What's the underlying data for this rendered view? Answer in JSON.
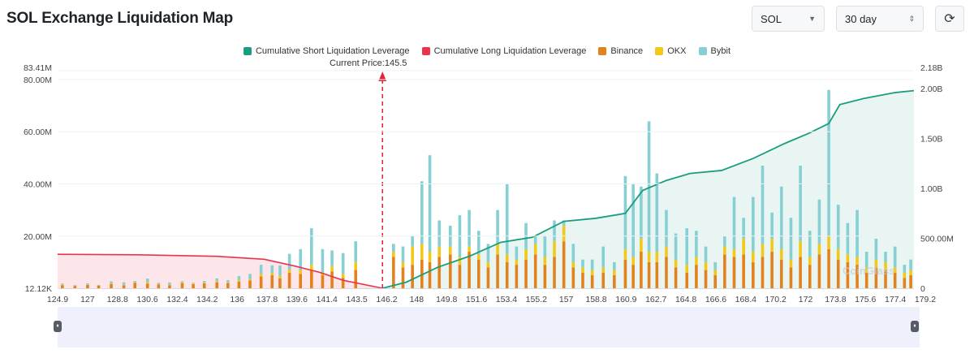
{
  "page": {
    "title": "SOL Exchange Liquidation Map"
  },
  "controls": {
    "coin": "SOL",
    "period": "30 day",
    "refresh_icon": "refresh-icon"
  },
  "legend": [
    {
      "label": "Cumulative Short Liquidation Leverage",
      "color": "#1a9d7f"
    },
    {
      "label": "Cumulative Long Liquidation Leverage",
      "color": "#e8354f"
    },
    {
      "label": "Binance",
      "color": "#e3821c"
    },
    {
      "label": "OKX",
      "color": "#f2c919"
    },
    {
      "label": "Bybit",
      "color": "#86cfd2"
    }
  ],
  "current_price_label": "Current Price:145.5",
  "watermark": "CoinGlass",
  "chart_data": {
    "type": "bar",
    "title": "SOL Exchange Liquidation Map",
    "current_price": 145.5,
    "x_min": 124.9,
    "x_max": 179.2,
    "x_ticks": [
      "124.9",
      "127",
      "128.8",
      "130.6",
      "132.4",
      "134.2",
      "136",
      "137.8",
      "139.6",
      "141.4",
      "143.5",
      "146.2",
      "148",
      "149.8",
      "151.6",
      "153.4",
      "155.2",
      "157",
      "158.8",
      "160.9",
      "162.7",
      "164.8",
      "166.6",
      "168.4",
      "170.2",
      "172",
      "173.8",
      "175.6",
      "177.4",
      "179.2"
    ],
    "y_left": {
      "min": 12120,
      "max": 83410000,
      "ticks": [
        {
          "v": 12120,
          "label": "12.12K"
        },
        {
          "v": 20000000,
          "label": "20.00M"
        },
        {
          "v": 40000000,
          "label": "40.00M"
        },
        {
          "v": 60000000,
          "label": "60.00M"
        },
        {
          "v": 80000000,
          "label": "80.00M"
        },
        {
          "v": 83410000,
          "label": "83.41M"
        }
      ]
    },
    "y_right": {
      "min": 0,
      "max": 2180000000,
      "ticks": [
        {
          "v": 0,
          "label": "0"
        },
        {
          "v": 500000000,
          "label": "500.00M"
        },
        {
          "v": 1000000000,
          "label": "1.00B"
        },
        {
          "v": 1500000000,
          "label": "1.50B"
        },
        {
          "v": 2000000000,
          "label": "2.00B"
        },
        {
          "v": 2180000000,
          "label": "2.18B"
        }
      ]
    },
    "long_cumulative": [
      [
        124.9,
        340000000
      ],
      [
        130,
        335000000
      ],
      [
        135,
        320000000
      ],
      [
        138,
        290000000
      ],
      [
        140,
        220000000
      ],
      [
        141.5,
        160000000
      ],
      [
        143,
        80000000
      ],
      [
        145.5,
        0
      ]
    ],
    "short_cumulative": [
      [
        145.5,
        0
      ],
      [
        147,
        60000000
      ],
      [
        149,
        210000000
      ],
      [
        151,
        320000000
      ],
      [
        153,
        460000000
      ],
      [
        155,
        510000000
      ],
      [
        157,
        670000000
      ],
      [
        159,
        700000000
      ],
      [
        160.9,
        750000000
      ],
      [
        162,
        980000000
      ],
      [
        163.5,
        1080000000
      ],
      [
        165,
        1150000000
      ],
      [
        167,
        1180000000
      ],
      [
        169,
        1300000000
      ],
      [
        171,
        1450000000
      ],
      [
        172.5,
        1550000000
      ],
      [
        173.8,
        1650000000
      ],
      [
        174.5,
        1840000000
      ],
      [
        176,
        1900000000
      ],
      [
        178,
        1960000000
      ],
      [
        179.2,
        1980000000
      ]
    ],
    "series_names": [
      "Binance",
      "OKX",
      "Bybit"
    ],
    "bars": [
      [
        125.2,
        1200000.0,
        300000.0,
        300000.0
      ],
      [
        126.0,
        900000.0,
        200000.0,
        100000.0
      ],
      [
        126.8,
        1300000.0,
        200000.0,
        400000.0
      ],
      [
        127.5,
        1000000.0,
        100000.0,
        200000.0
      ],
      [
        128.3,
        1600000.0,
        300000.0,
        700000.0
      ],
      [
        129.1,
        1100000.0,
        200000.0,
        1000000.0
      ],
      [
        129.8,
        2100000.0,
        200000.0,
        500000.0
      ],
      [
        130.6,
        1800000.0,
        600000.0,
        1300000.0
      ],
      [
        131.3,
        1500000.0,
        200000.0,
        400000.0
      ],
      [
        132.0,
        1200000.0,
        200000.0,
        800000.0
      ],
      [
        132.8,
        2000000.0,
        400000.0,
        300000.0
      ],
      [
        133.5,
        1600000.0,
        200000.0,
        300000.0
      ],
      [
        134.2,
        1900000.0,
        300000.0,
        600000.0
      ],
      [
        135.0,
        2300000.0,
        500000.0,
        1000000.0
      ],
      [
        135.7,
        2000000.0,
        300000.0,
        800000.0
      ],
      [
        136.4,
        2600000.0,
        600000.0,
        1500000.0
      ],
      [
        137.1,
        3000000.0,
        500000.0,
        2000000.0
      ],
      [
        137.8,
        4500000.0,
        1000000.0,
        3500000.0
      ],
      [
        138.5,
        5000000.0,
        800000.0,
        3000000.0
      ],
      [
        139.0,
        3800000.0,
        1000000.0,
        4000000.0
      ],
      [
        139.6,
        6000000.0,
        1200000.0,
        6000000.0
      ],
      [
        140.3,
        5500000.0,
        1500000.0,
        8000000.0
      ],
      [
        141.0,
        7000000.0,
        2000000.0,
        14000000.0
      ],
      [
        141.7,
        5000000.0,
        1000000.0,
        9000000.0
      ],
      [
        142.3,
        6500000.0,
        2000000.0,
        6000000.0
      ],
      [
        143.0,
        4000000.0,
        1500000.0,
        8000000.0
      ],
      [
        143.8,
        7000000.0,
        3000000.0,
        8000000.0
      ],
      [
        146.2,
        12000000.0,
        2000000.0,
        3000000.0
      ],
      [
        146.8,
        8000000.0,
        2000000.0,
        6000000.0
      ],
      [
        147.4,
        9000000.0,
        7000000.0,
        4000000.0
      ],
      [
        148.0,
        11000000.0,
        6000000.0,
        24000000.0
      ],
      [
        148.5,
        10000000.0,
        4000000.0,
        37000000.0
      ],
      [
        149.1,
        12000000.0,
        4000000.0,
        10000000.0
      ],
      [
        149.8,
        13000000.0,
        3000000.0,
        8000000.0
      ],
      [
        150.4,
        9000000.0,
        3000000.0,
        16000000.0
      ],
      [
        151.0,
        14000000.0,
        2000000.0,
        14000000.0
      ],
      [
        151.6,
        11000000.0,
        2000000.0,
        9000000.0
      ],
      [
        152.2,
        8000000.0,
        2000000.0,
        7000000.0
      ],
      [
        152.8,
        13000000.0,
        4000000.0,
        13000000.0
      ],
      [
        153.4,
        10000000.0,
        3000000.0,
        27000000.0
      ],
      [
        154.0,
        9000000.0,
        2000000.0,
        5000000.0
      ],
      [
        154.6,
        11000000.0,
        4000000.0,
        10000000.0
      ],
      [
        155.2,
        13000000.0,
        4000000.0,
        3000000.0
      ],
      [
        155.8,
        9000000.0,
        3000000.0,
        8000000.0
      ],
      [
        156.4,
        12000000.0,
        6000000.0,
        8000000.0
      ],
      [
        157.0,
        18000000.0,
        6000000.0,
        2000000.0
      ],
      [
        157.6,
        8000000.0,
        2000000.0,
        7000000.0
      ],
      [
        158.2,
        6000000.0,
        2000000.0,
        3000000.0
      ],
      [
        158.8,
        5000000.0,
        2000000.0,
        4000000.0
      ],
      [
        159.5,
        6000000.0,
        2000000.0,
        8000000.0
      ],
      [
        160.2,
        5000000.0,
        2000000.0,
        3000000.0
      ],
      [
        160.9,
        11000000.0,
        4000000.0,
        28000000.0
      ],
      [
        161.4,
        9000000.0,
        3000000.0,
        28000000.0
      ],
      [
        161.9,
        14000000.0,
        5000000.0,
        20000000.0
      ],
      [
        162.4,
        10000000.0,
        4000000.0,
        50000000.0
      ],
      [
        162.9,
        10000000.0,
        4000000.0,
        30000000.0
      ],
      [
        163.5,
        12000000.0,
        4000000.0,
        14000000.0
      ],
      [
        164.1,
        8000000.0,
        3000000.0,
        10000000.0
      ],
      [
        164.8,
        6000000.0,
        3000000.0,
        14000000.0
      ],
      [
        165.4,
        9000000.0,
        3000000.0,
        10000000.0
      ],
      [
        166.0,
        7000000.0,
        3000000.0,
        6000000.0
      ],
      [
        166.6,
        5000000.0,
        2000000.0,
        3000000.0
      ],
      [
        167.2,
        13000000.0,
        3000000.0,
        4000000.0
      ],
      [
        167.8,
        12000000.0,
        3000000.0,
        20000000.0
      ],
      [
        168.4,
        13000000.0,
        6000000.0,
        8000000.0
      ],
      [
        169.0,
        10000000.0,
        4000000.0,
        21000000.0
      ],
      [
        169.6,
        12000000.0,
        5000000.0,
        30000000.0
      ],
      [
        170.2,
        14000000.0,
        5000000.0,
        10000000.0
      ],
      [
        170.8,
        11000000.0,
        4000000.0,
        24000000.0
      ],
      [
        171.4,
        8000000.0,
        3000000.0,
        16000000.0
      ],
      [
        172.0,
        12000000.0,
        6000000.0,
        29000000.0
      ],
      [
        172.6,
        9000000.0,
        3000000.0,
        10000000.0
      ],
      [
        173.2,
        13000000.0,
        4000000.0,
        17000000.0
      ],
      [
        173.8,
        15000000.0,
        5000000.0,
        56000000.0
      ],
      [
        174.4,
        11000000.0,
        4000000.0,
        17000000.0
      ],
      [
        175.0,
        10000000.0,
        3000000.0,
        12000000.0
      ],
      [
        175.6,
        9000000.0,
        3000000.0,
        18000000.0
      ],
      [
        176.2,
        6000000.0,
        2000000.0,
        6000000.0
      ],
      [
        176.8,
        8000000.0,
        3000000.0,
        8000000.0
      ],
      [
        177.4,
        7000000.0,
        3000000.0,
        4000000.0
      ],
      [
        178.0,
        6000000.0,
        2000000.0,
        8000000.0
      ],
      [
        178.6,
        4000000.0,
        2000000.0,
        3000000.0
      ],
      [
        179.0,
        5000000.0,
        2000000.0,
        4000000.0
      ]
    ]
  }
}
